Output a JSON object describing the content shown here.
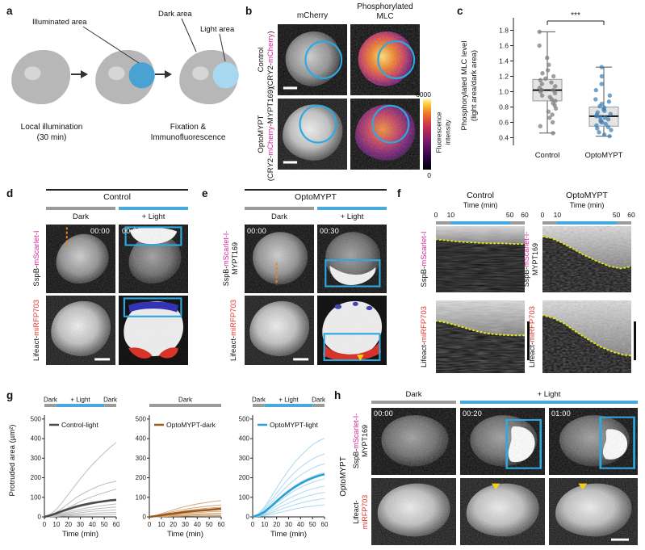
{
  "colors": {
    "magenta": "#d4269a",
    "red": "#e0362c",
    "light_blue": "#45aadd",
    "dark_bar": "#9b9b9b",
    "roi_blue": "#2da8e0",
    "yellow": "#f2d117",
    "orange": "#e8821e",
    "kymo_line": "#d9e021"
  },
  "panel_a": {
    "label": "a",
    "illuminated_area": "Illuminated area",
    "dark_area": "Dark area",
    "light_area": "Light area",
    "caption1_line1": "Local illumination",
    "caption1_line2": "(30 min)",
    "caption2_line1": "Fixation &",
    "caption2_line2": "Immunofluorescence"
  },
  "panel_b": {
    "label": "b",
    "col1": "mCherry",
    "col2_line1": "Phosphorylated",
    "col2_line2": "MLC",
    "row1_name": "Control",
    "row1_pre": "(CRY2-",
    "row1_accent": "mCherry",
    "row1_post": ")",
    "row2_name": "OptoMYPT",
    "row2_pre": "(CRY2-",
    "row2_accent": "mCherry",
    "row2_post": "-MYPT169)",
    "cbar_max": "6000",
    "cbar_min": "0",
    "cbar_title_line1": "Fluorescence",
    "cbar_title_line2": "intensity"
  },
  "panel_c": {
    "label": "c"
  },
  "panel_d": {
    "label": "d",
    "title": "Control",
    "dark": "Dark",
    "light": "+ Light",
    "t1": "00:00",
    "t2": "00:30",
    "row1_pre": "SspB-",
    "row1_accent": "mScarlet-I",
    "row2_pre": "Lifeact-",
    "row2_accent": "miRFP703"
  },
  "panel_e": {
    "label": "e",
    "title": "OptoMYPT",
    "dark": "Dark",
    "light": "+ Light",
    "t1": "00:00",
    "t2": "00:30",
    "row1_pre": "SspB-",
    "row1_accent": "mScarlet-I-",
    "row1_post": "MYPT169",
    "row2_pre": "Lifeact-",
    "row2_accent": "miRFP703"
  },
  "panel_f": {
    "label": "f",
    "col1_title": "Control",
    "col2_title": "OptoMYPT",
    "time_label": "Time (min)",
    "ticks": [
      "0",
      "10",
      "50",
      "60"
    ],
    "left_row1_pre": "SspB-",
    "left_row1_accent": "mScarlet-I",
    "right_row1_pre": "SspB-",
    "right_row1_accent": "mScarlet-I-",
    "right_row1_post": "MYPT169",
    "row2_pre": "Lifeact-",
    "row2_accent": "miRFP703"
  },
  "panel_g": {
    "label": "g"
  },
  "panel_h": {
    "label": "h",
    "dark": "Dark",
    "light": "+ Light",
    "side": "OptoMYPT",
    "row1_pre": "SspB-",
    "row1_accent": "mScarlet-I-",
    "row1_post": "MYPT169",
    "row2_pre": "Lifeact-",
    "row2_accent": "miRFP703",
    "times": [
      "00:00",
      "00:20",
      "01:00"
    ]
  },
  "chart_data": [
    {
      "id": "c",
      "type": "box",
      "ylabel_line1": "Phosphorylated MLC level",
      "ylabel_line2": "(light area/dark area)",
      "ylim": [
        0.3,
        1.9
      ],
      "yticks": [
        0.4,
        0.6,
        0.8,
        1.0,
        1.2,
        1.4,
        1.6,
        1.8
      ],
      "significance": "***",
      "categories": [
        "Control",
        "OptoMYPT"
      ],
      "boxes": [
        {
          "name": "Control",
          "whisker_low": 0.46,
          "q1": 0.88,
          "median": 1.02,
          "q3": 1.16,
          "whisker_high": 1.78,
          "point_color": "#7a7a7a",
          "points": [
            0.46,
            0.55,
            0.6,
            0.66,
            0.7,
            0.74,
            0.78,
            0.82,
            0.85,
            0.88,
            0.9,
            0.93,
            0.95,
            0.98,
            1.0,
            1.02,
            1.02,
            1.05,
            1.07,
            1.1,
            1.12,
            1.15,
            1.17,
            1.2,
            1.24,
            1.28,
            1.35,
            1.44,
            1.6,
            1.78
          ]
        },
        {
          "name": "OptoMYPT",
          "whisker_low": 0.42,
          "q1": 0.55,
          "median": 0.68,
          "q3": 0.8,
          "whisker_high": 1.32,
          "point_color": "#3f7fb5",
          "points": [
            0.42,
            0.44,
            0.47,
            0.5,
            0.52,
            0.54,
            0.56,
            0.58,
            0.6,
            0.61,
            0.63,
            0.64,
            0.66,
            0.67,
            0.68,
            0.7,
            0.71,
            0.73,
            0.75,
            0.77,
            0.79,
            0.81,
            0.84,
            0.87,
            0.9,
            0.95,
            1.02,
            1.1,
            1.2,
            1.32
          ]
        }
      ]
    },
    {
      "id": "g1",
      "type": "line",
      "legend": "Control-light",
      "xlabel": "Time (min)",
      "ylabel": "Protruded area (µm²)",
      "xlim": [
        0,
        60
      ],
      "ylim": [
        0,
        520
      ],
      "xticks": [
        0,
        10,
        20,
        30,
        40,
        50,
        60
      ],
      "yticks": [
        0,
        100,
        200,
        300,
        400,
        500
      ],
      "phases": [
        {
          "label": "Dark",
          "from": 0,
          "to": 10,
          "color": "#9b9b9b"
        },
        {
          "label": "+ Light",
          "from": 10,
          "to": 50,
          "color": "#45aadd"
        },
        {
          "label": "Dark",
          "from": 50,
          "to": 60,
          "color": "#9b9b9b"
        }
      ],
      "x": [
        0,
        5,
        10,
        15,
        20,
        25,
        30,
        35,
        40,
        45,
        50,
        55,
        60
      ],
      "mean": [
        0,
        8,
        18,
        30,
        40,
        50,
        58,
        65,
        71,
        76,
        80,
        84,
        87
      ],
      "mean_color": "#4a4a4a",
      "thin_color": "#bdbdbd",
      "individuals": [
        [
          0,
          14,
          38,
          75,
          115,
          155,
          195,
          232,
          266,
          298,
          328,
          356,
          380
        ],
        [
          0,
          10,
          24,
          44,
          68,
          92,
          112,
          128,
          143,
          157,
          168,
          176,
          182
        ],
        [
          0,
          8,
          19,
          33,
          48,
          63,
          78,
          92,
          104,
          114,
          124,
          133,
          142
        ],
        [
          0,
          6,
          14,
          24,
          34,
          44,
          52,
          60,
          66,
          72,
          77,
          82,
          86
        ],
        [
          0,
          5,
          11,
          18,
          26,
          33,
          39,
          45,
          50,
          55,
          59,
          63,
          66
        ],
        [
          0,
          3,
          8,
          14,
          20,
          25,
          30,
          34,
          38,
          42,
          45,
          48,
          50
        ],
        [
          0,
          2,
          5,
          10,
          14,
          18,
          22,
          25,
          28,
          30,
          32,
          34,
          36
        ],
        [
          0,
          2,
          4,
          7,
          10,
          12,
          14,
          16,
          18,
          20,
          21,
          22,
          23
        ],
        [
          0,
          1,
          2,
          4,
          5,
          7,
          8,
          9,
          10,
          11,
          12,
          12,
          13
        ]
      ]
    },
    {
      "id": "g2",
      "type": "line",
      "legend": "OptoMYPT-dark",
      "xlabel": "Time (min)",
      "xlim": [
        0,
        60
      ],
      "ylim": [
        0,
        520
      ],
      "xticks": [
        0,
        10,
        20,
        30,
        40,
        50,
        60
      ],
      "yticks": [
        0,
        100,
        200,
        300,
        400,
        500
      ],
      "phases": [
        {
          "label": "Dark",
          "from": 0,
          "to": 60,
          "color": "#9b9b9b"
        }
      ],
      "x": [
        0,
        5,
        10,
        15,
        20,
        25,
        30,
        35,
        40,
        45,
        50,
        55,
        60
      ],
      "mean": [
        0,
        4,
        8,
        13,
        17,
        21,
        25,
        28,
        31,
        34,
        36,
        39,
        41
      ],
      "mean_color": "#9c5a1e",
      "thin_color": "#d2a878",
      "individuals": [
        [
          0,
          7,
          16,
          26,
          36,
          45,
          53,
          60,
          66,
          71,
          76,
          80,
          83
        ],
        [
          0,
          6,
          12,
          20,
          27,
          33,
          39,
          44,
          48,
          52,
          56,
          59,
          61
        ],
        [
          0,
          5,
          10,
          16,
          21,
          26,
          31,
          35,
          39,
          42,
          45,
          47,
          49
        ],
        [
          0,
          4,
          8,
          12,
          16,
          20,
          24,
          27,
          30,
          32,
          34,
          36,
          38
        ],
        [
          0,
          3,
          6,
          9,
          12,
          15,
          18,
          20,
          22,
          24,
          26,
          27,
          28
        ],
        [
          0,
          2,
          4,
          6,
          8,
          10,
          12,
          13,
          15,
          16,
          17,
          18,
          19
        ],
        [
          0,
          1,
          2,
          4,
          5,
          6,
          8,
          9,
          10,
          11,
          11,
          12,
          12
        ],
        [
          0,
          0,
          1,
          2,
          3,
          3,
          4,
          4,
          5,
          5,
          6,
          6,
          6
        ]
      ]
    },
    {
      "id": "g3",
      "type": "line",
      "legend": "OptoMYPT-light",
      "xlabel": "Time (min)",
      "xlim": [
        0,
        60
      ],
      "ylim": [
        0,
        520
      ],
      "xticks": [
        0,
        10,
        20,
        30,
        40,
        50,
        60
      ],
      "yticks": [
        0,
        100,
        200,
        300,
        400,
        500
      ],
      "phases": [
        {
          "label": "Dark",
          "from": 0,
          "to": 10,
          "color": "#9b9b9b"
        },
        {
          "label": "+ Light",
          "from": 10,
          "to": 50,
          "color": "#45aadd"
        },
        {
          "label": "Dark",
          "from": 50,
          "to": 60,
          "color": "#9b9b9b"
        }
      ],
      "x": [
        0,
        5,
        10,
        15,
        20,
        25,
        30,
        35,
        40,
        45,
        50,
        55,
        60
      ],
      "mean": [
        0,
        9,
        26,
        52,
        80,
        106,
        130,
        152,
        170,
        186,
        199,
        210,
        218
      ],
      "mean_color": "#2b9fd6",
      "thin_color": "#a8d9f0",
      "individuals": [
        [
          0,
          18,
          52,
          98,
          148,
          195,
          238,
          278,
          312,
          342,
          368,
          388,
          402
        ],
        [
          0,
          15,
          44,
          82,
          122,
          160,
          196,
          227,
          254,
          277,
          296,
          311,
          322
        ],
        [
          0,
          12,
          36,
          68,
          102,
          134,
          164,
          190,
          213,
          233,
          249,
          262,
          272
        ],
        [
          0,
          10,
          30,
          56,
          85,
          112,
          137,
          159,
          178,
          194,
          207,
          218,
          226
        ],
        [
          0,
          8,
          24,
          46,
          70,
          93,
          115,
          134,
          151,
          165,
          177,
          187,
          195
        ],
        [
          0,
          6,
          19,
          37,
          56,
          75,
          93,
          108,
          122,
          134,
          143,
          151,
          158
        ],
        [
          0,
          5,
          14,
          27,
          42,
          57,
          71,
          84,
          95,
          105,
          113,
          120,
          126
        ],
        [
          0,
          3,
          10,
          19,
          30,
          42,
          52,
          62,
          70,
          78,
          84,
          89,
          94
        ],
        [
          0,
          2,
          6,
          12,
          19,
          26,
          33,
          40,
          46,
          51,
          55,
          59,
          62
        ]
      ]
    }
  ]
}
